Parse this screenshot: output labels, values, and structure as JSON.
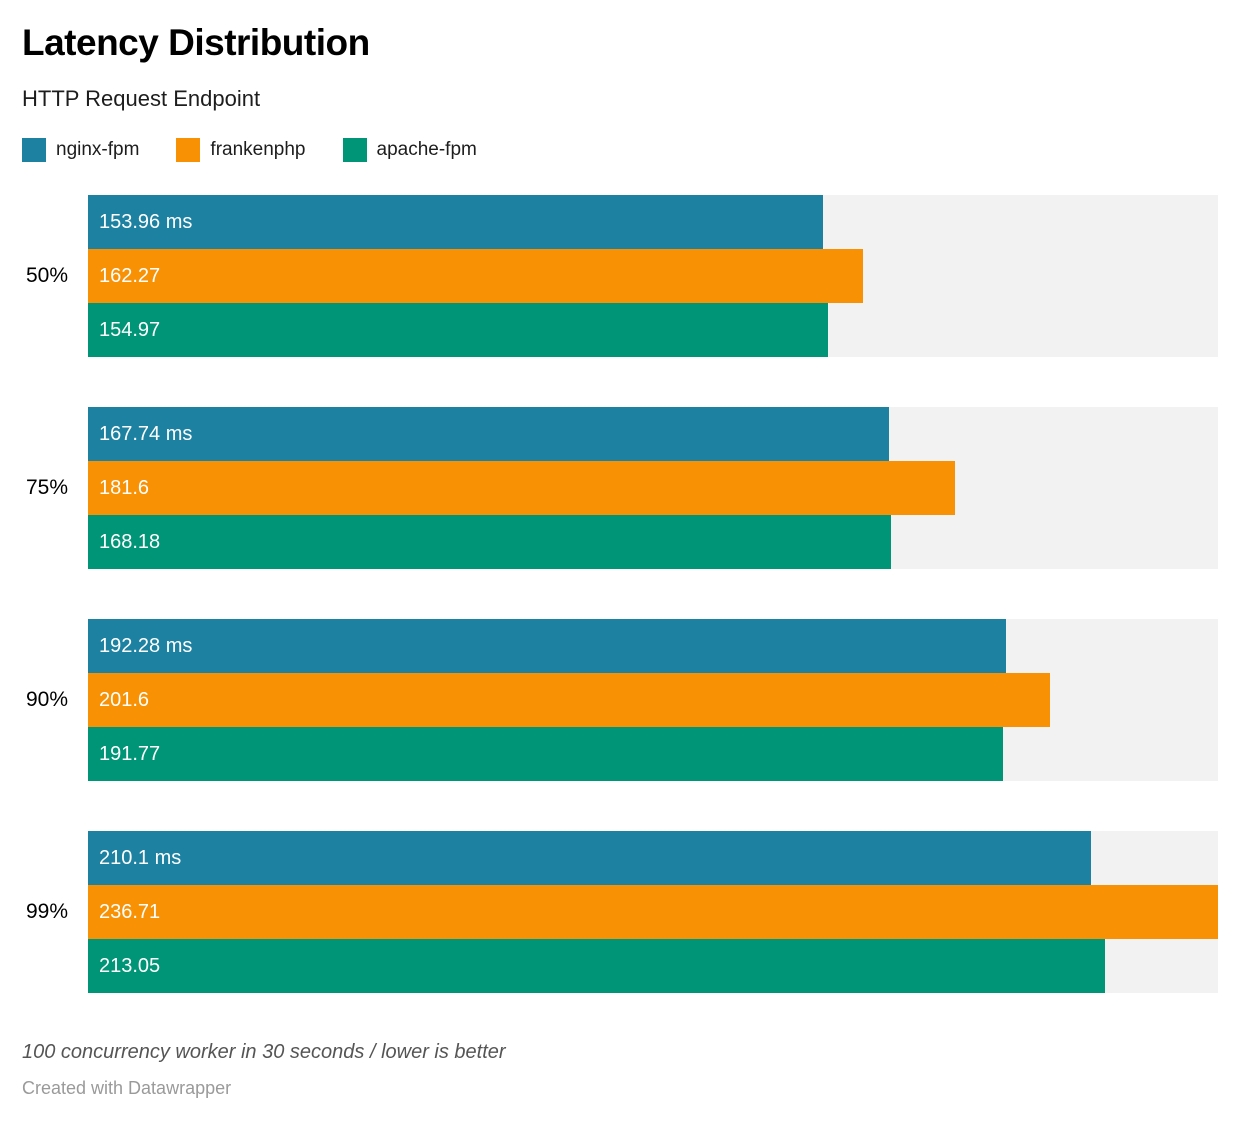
{
  "header": {
    "title": "Latency Distribution",
    "subtitle": "HTTP Request Endpoint"
  },
  "legend": {
    "items": [
      {
        "label": "nginx-fpm",
        "color": "#1d81a2"
      },
      {
        "label": "frankenphp",
        "color": "#f89104"
      },
      {
        "label": "apache-fpm",
        "color": "#009577"
      }
    ]
  },
  "chart_data": {
    "type": "bar",
    "orientation": "horizontal",
    "title": "Latency Distribution",
    "subtitle": "HTTP Request Endpoint",
    "unit": "ms",
    "xlim": [
      0,
      236.71
    ],
    "track_color": "#f2f2f2",
    "grid": false,
    "legend_position": "top",
    "categories": [
      "50%",
      "75%",
      "90%",
      "99%"
    ],
    "series": [
      {
        "name": "nginx-fpm",
        "color": "#1d81a2",
        "values": [
          153.96,
          167.74,
          192.28,
          210.1
        ],
        "labels": [
          "153.96 ms",
          "167.74 ms",
          "192.28 ms",
          "210.1 ms"
        ]
      },
      {
        "name": "frankenphp",
        "color": "#f89104",
        "values": [
          162.27,
          181.6,
          201.6,
          236.71
        ],
        "labels": [
          "162.27",
          "181.6",
          "201.6",
          "236.71"
        ]
      },
      {
        "name": "apache-fpm",
        "color": "#009577",
        "values": [
          154.97,
          168.18,
          191.77,
          213.05
        ],
        "labels": [
          "154.97",
          "168.18",
          "191.77",
          "213.05"
        ]
      }
    ]
  },
  "footer": {
    "note": "100 concurrency worker in 30 seconds / lower is better",
    "credit": "Created with Datawrapper"
  }
}
